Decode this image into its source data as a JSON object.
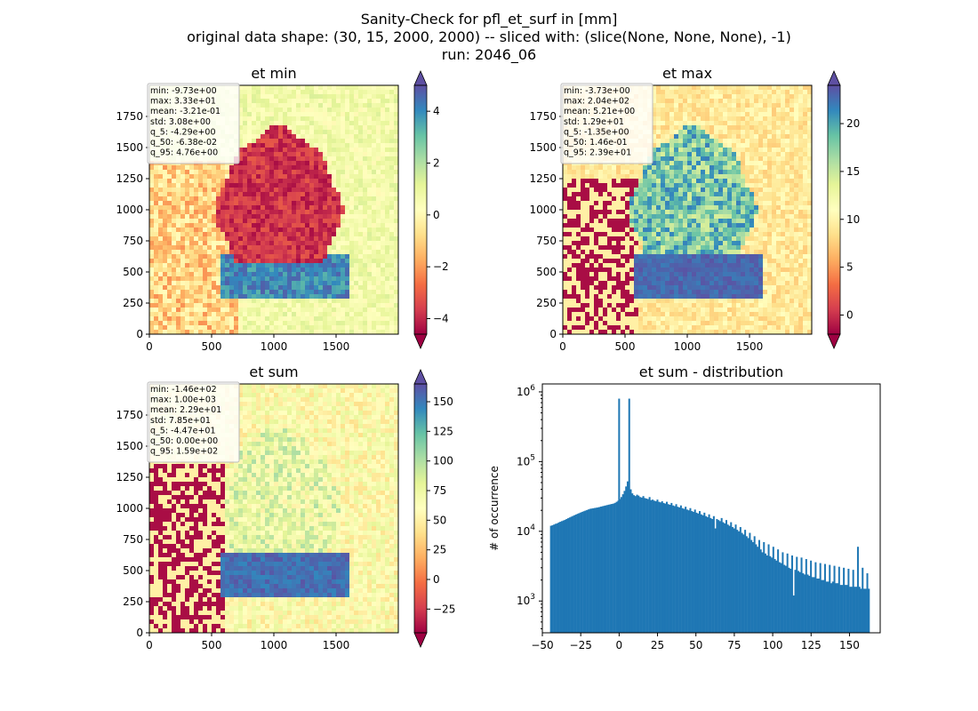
{
  "figure": {
    "title_lines": [
      "Sanity-Check for pfl_et_surf in [mm]",
      "original data shape: (30, 15, 2000, 2000) -- sliced with: (slice(None, None, None), -1)",
      "run: 2046_06"
    ]
  },
  "colors": {
    "spectral": [
      "#9e0142",
      "#d53e4f",
      "#f46d43",
      "#fdae61",
      "#fee08b",
      "#ffffbf",
      "#e6f598",
      "#abdda4",
      "#66c2a5",
      "#3288bd",
      "#5e4fa2"
    ],
    "hist_bar": "#1f77b4"
  },
  "chart_data": [
    {
      "type": "heatmap",
      "title": "et min",
      "x_ticks": [
        0,
        500,
        1000,
        1500
      ],
      "y_ticks": [
        0,
        250,
        500,
        750,
        1000,
        1250,
        1500,
        1750
      ],
      "xlim": [
        0,
        2000
      ],
      "ylim": [
        0,
        2000
      ],
      "colorbar": {
        "vmin": -4.6,
        "vmax": 5.0,
        "ticks": [
          -4,
          -2,
          0,
          2,
          4
        ],
        "extend": "both"
      },
      "stats": [
        "min: -9.73e+00",
        "max: 3.33e+01",
        "mean: -3.21e-01",
        "std: 3.08e+00",
        "q_5: -4.29e+00",
        "q_50: -6.38e-02",
        "q_95: 4.76e+00"
      ]
    },
    {
      "type": "heatmap",
      "title": "et max",
      "x_ticks": [
        0,
        500,
        1000,
        1500
      ],
      "y_ticks": [
        0,
        250,
        500,
        750,
        1000,
        1250,
        1500,
        1750
      ],
      "xlim": [
        0,
        2000
      ],
      "ylim": [
        0,
        2000
      ],
      "colorbar": {
        "vmin": -2,
        "vmax": 24,
        "ticks": [
          0,
          5,
          10,
          15,
          20
        ],
        "extend": "both"
      },
      "stats": [
        "min: -3.73e+00",
        "max: 2.04e+02",
        "mean: 5.21e+00",
        "std: 1.29e+01",
        "q_5: -1.35e+00",
        "q_50: 1.46e-01",
        "q_95: 2.39e+01"
      ]
    },
    {
      "type": "heatmap",
      "title": "et sum",
      "x_ticks": [
        0,
        500,
        1000,
        1500
      ],
      "y_ticks": [
        0,
        250,
        500,
        750,
        1000,
        1250,
        1500,
        1750
      ],
      "xlim": [
        0,
        2000
      ],
      "ylim": [
        0,
        2000
      ],
      "colorbar": {
        "vmin": -45,
        "vmax": 165,
        "ticks": [
          -25,
          0,
          25,
          50,
          75,
          100,
          125,
          150
        ],
        "extend": "both"
      },
      "stats": [
        "min: -1.46e+02",
        "max: 1.00e+03",
        "mean: 2.29e+01",
        "std: 7.85e+01",
        "q_5: -4.47e+01",
        "q_50: 0.00e+00",
        "q_95: 1.59e+02"
      ]
    },
    {
      "type": "bar",
      "title": "et sum - distribution",
      "ylabel": "# of occurrence",
      "yscale": "log",
      "xlim": [
        -50,
        170
      ],
      "ylim": [
        350,
        1300000
      ],
      "x_ticks": [
        -50,
        -25,
        0,
        25,
        50,
        75,
        100,
        125,
        150
      ],
      "y_ticks": [
        1000,
        10000,
        100000,
        1000000
      ],
      "y_tick_labels": [
        {
          "base": "10",
          "exp": "3"
        },
        {
          "base": "10",
          "exp": "4"
        },
        {
          "base": "10",
          "exp": "5"
        },
        {
          "base": "10",
          "exp": "6"
        }
      ],
      "bin_range": [
        -45,
        159
      ],
      "bin_count": 200,
      "peak": {
        "x": 0,
        "value": 800000
      },
      "values": [
        12000,
        12200,
        12500,
        12800,
        13000,
        13400,
        13700,
        14000,
        14300,
        14600,
        15000,
        15400,
        15800,
        16200,
        16600,
        17000,
        17400,
        17800,
        18200,
        18600,
        19000,
        19400,
        19800,
        20200,
        20600,
        21000,
        21200,
        21400,
        21600,
        21800,
        22000,
        22300,
        22600,
        22900,
        23200,
        23500,
        23800,
        24100,
        24400,
        24700,
        25000,
        25600,
        26500,
        27500,
        29000,
        31000,
        34000,
        38000,
        44000,
        52000,
        800000,
        40000,
        35000,
        33000,
        32000,
        33500,
        32500,
        31000,
        30500,
        32000,
        30000,
        29500,
        29000,
        31000,
        28000,
        28500,
        27500,
        27000,
        28500,
        26500,
        26000,
        27000,
        25500,
        25000,
        26500,
        24500,
        24000,
        25500,
        23500,
        23000,
        24500,
        22500,
        22000,
        23500,
        21500,
        21000,
        22500,
        20500,
        20000,
        21500,
        19500,
        19000,
        20500,
        18500,
        18000,
        19500,
        17500,
        17000,
        18500,
        16500,
        16000,
        17500,
        15500,
        15000,
        16500,
        11000,
        15000,
        14500,
        14000,
        15500,
        13500,
        13000,
        14500,
        12500,
        12000,
        13500,
        11500,
        11000,
        12500,
        10500,
        10000,
        11500,
        9500,
        9000,
        10500,
        8500,
        8000,
        9500,
        7500,
        7000,
        8500,
        6500,
        6000,
        7500,
        5500,
        5000,
        7000,
        4800,
        4500,
        6500,
        4400,
        4200,
        6000,
        4000,
        3800,
        5500,
        3600,
        3500,
        5000,
        3300,
        3200,
        4800,
        3000,
        2900,
        4500,
        1200,
        2800,
        4300,
        2700,
        2600,
        4200,
        2500,
        2400,
        4000,
        2400,
        2300,
        3800,
        2200,
        2200,
        3600,
        2100,
        2100,
        3500,
        2000,
        2000,
        3400,
        1900,
        1900,
        3300,
        1800,
        1900,
        3200,
        1800,
        1800,
        3100,
        1700,
        1700,
        3000,
        1700,
        1700,
        2900,
        1600,
        1600,
        2800,
        1600,
        1600,
        6000,
        1600,
        1500,
        3000,
        1500,
        1500,
        2500,
        1500
      ]
    }
  ]
}
